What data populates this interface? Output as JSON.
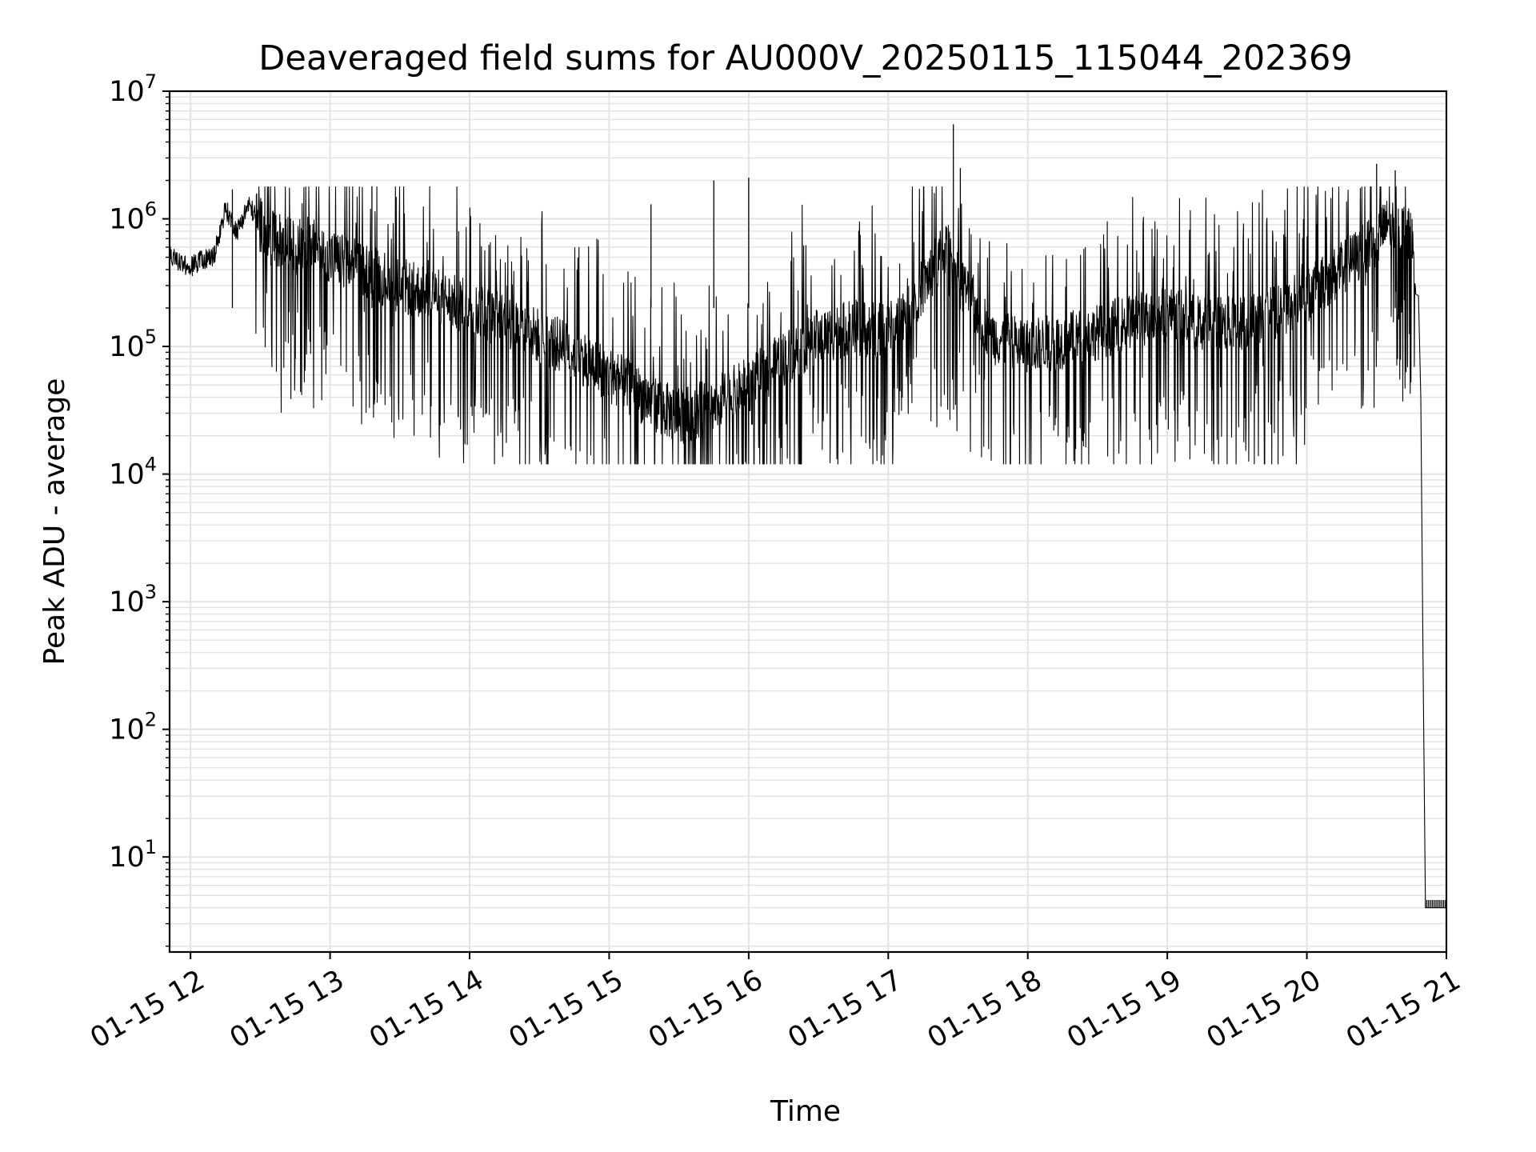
{
  "chart_data": {
    "type": "line",
    "title": "Deaveraged field sums for AU000V_20250115_115044_202369",
    "xlabel": "Time",
    "ylabel": "Peak ADU - average",
    "yscale": "log",
    "ylim": [
      1.8,
      10000000
    ],
    "xlim": [
      "01-15 11:51",
      "01-15 21:00"
    ],
    "grid": true,
    "line_color": "#000000",
    "grid_color": "#e3e3e3",
    "x_ticks": [
      "01-15 12",
      "01-15 13",
      "01-15 14",
      "01-15 15",
      "01-15 16",
      "01-15 17",
      "01-15 18",
      "01-15 19",
      "01-15 20",
      "01-15 21"
    ],
    "y_ticks": [
      {
        "base": "10",
        "exp": "1",
        "value": 10
      },
      {
        "base": "10",
        "exp": "2",
        "value": 100
      },
      {
        "base": "10",
        "exp": "3",
        "value": 1000
      },
      {
        "base": "10",
        "exp": "4",
        "value": 10000
      },
      {
        "base": "10",
        "exp": "5",
        "value": 100000
      },
      {
        "base": "10",
        "exp": "6",
        "value": 1000000
      },
      {
        "base": "10",
        "exp": "7",
        "value": 10000000
      }
    ],
    "series": [
      {
        "x": [
          "01-15 11:51",
          "01-15 11:55",
          "01-15 12:00",
          "01-15 12:05",
          "01-15 12:10",
          "01-15 12:15",
          "01-15 12:20",
          "01-15 12:25",
          "01-15 12:30",
          "01-15 12:35",
          "01-15 12:40",
          "01-15 12:45",
          "01-15 12:50",
          "01-15 13:00",
          "01-15 13:15",
          "01-15 13:30",
          "01-15 13:45",
          "01-15 14:00",
          "01-15 14:15",
          "01-15 14:30",
          "01-15 14:45",
          "01-15 15:00",
          "01-15 15:15",
          "01-15 15:30",
          "01-15 15:45",
          "01-15 16:00",
          "01-15 16:15",
          "01-15 16:30",
          "01-15 16:45",
          "01-15 17:00",
          "01-15 17:15",
          "01-15 17:25",
          "01-15 17:30",
          "01-15 17:45",
          "01-15 18:00",
          "01-15 18:15",
          "01-15 18:30",
          "01-15 18:45",
          "01-15 19:00",
          "01-15 19:15",
          "01-15 19:30",
          "01-15 19:45",
          "01-15 20:00",
          "01-15 20:15",
          "01-15 20:30",
          "01-15 20:35",
          "01-15 20:40",
          "01-15 20:45",
          "01-15 20:48",
          "01-15 20:50",
          "01-15 20:52",
          "01-15 20:55",
          "01-15 21:00"
        ],
        "y": [
          550000,
          450000,
          420000,
          480000,
          500000,
          1200000,
          800000,
          1300000,
          900000,
          700000,
          650000,
          600000,
          650000,
          500000,
          400000,
          300000,
          250000,
          200000,
          160000,
          120000,
          90000,
          60000,
          40000,
          28000,
          35000,
          50000,
          80000,
          120000,
          140000,
          130000,
          300000,
          600000,
          350000,
          120000,
          100000,
          110000,
          130000,
          160000,
          180000,
          150000,
          150000,
          180000,
          250000,
          400000,
          700000,
          900000,
          850000,
          700000,
          250000,
          30000,
          4,
          4,
          4
        ]
      }
    ],
    "annotations": []
  }
}
